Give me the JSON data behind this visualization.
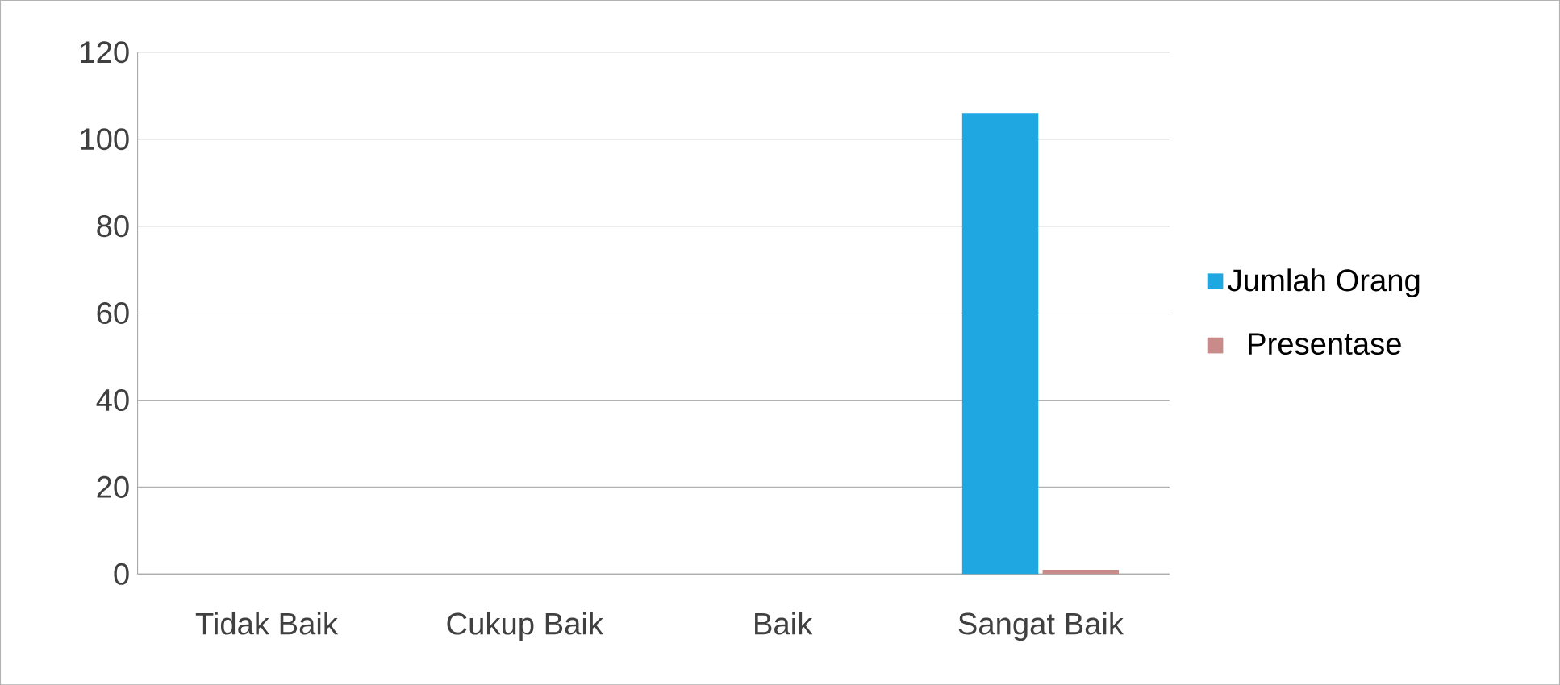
{
  "chart_data": {
    "type": "bar",
    "categories": [
      "Tidak Baik",
      "Cukup Baik",
      "Baik",
      "Sangat Baik"
    ],
    "series": [
      {
        "name": "Jumlah Orang",
        "color": "#1ea7e1",
        "values": [
          0,
          0,
          0,
          106
        ]
      },
      {
        "name": "Presentase",
        "color": "#c98a8a",
        "values": [
          0,
          0,
          0,
          1
        ]
      }
    ],
    "ylim": [
      0,
      120
    ],
    "yticks": [
      0,
      20,
      40,
      60,
      80,
      100,
      120
    ],
    "grid": "y",
    "legend": "right"
  }
}
